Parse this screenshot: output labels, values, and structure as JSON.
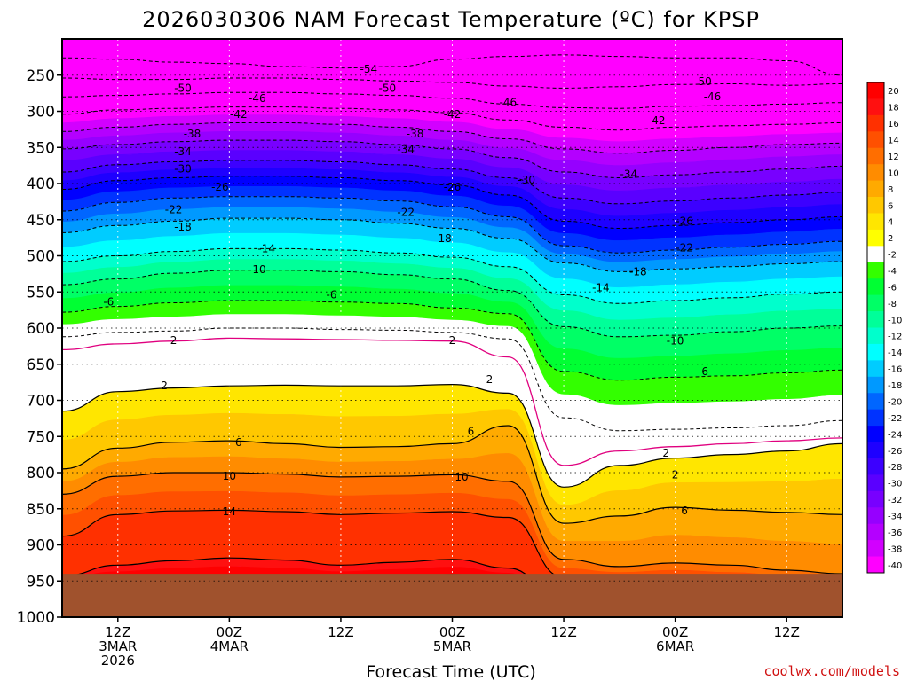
{
  "chart_data": {
    "type": "heatmap",
    "title": "2026030306 NAM Forecast Temperature (ºC) for KPSP",
    "xlabel": "Forecast Time (UTC)",
    "ylabel": "",
    "y_axis": {
      "type": "pressure",
      "unit": "hPa",
      "inverted": true,
      "range": [
        1000,
        200
      ],
      "ticks": [
        250,
        300,
        350,
        400,
        450,
        500,
        550,
        600,
        650,
        700,
        750,
        800,
        850,
        900,
        950,
        1000
      ]
    },
    "x_axis": {
      "range_hours": [
        0,
        84
      ],
      "tick_hours": [
        6,
        18,
        30,
        42,
        54,
        66,
        78
      ],
      "tick_labels": [
        {
          "hour": 6,
          "lines": [
            "12Z",
            "3MAR",
            "2026"
          ]
        },
        {
          "hour": 18,
          "lines": [
            "00Z",
            "4MAR"
          ]
        },
        {
          "hour": 30,
          "lines": [
            "12Z"
          ]
        },
        {
          "hour": 42,
          "lines": [
            "00Z",
            "5MAR"
          ]
        },
        {
          "hour": 54,
          "lines": [
            "12Z"
          ]
        },
        {
          "hour": 66,
          "lines": [
            "00Z",
            "6MAR"
          ]
        },
        {
          "hour": 78,
          "lines": [
            "12Z"
          ]
        }
      ]
    },
    "grid": true,
    "ground_level_hpa": 940,
    "x_hours": [
      0,
      6,
      12,
      18,
      24,
      30,
      36,
      42,
      48,
      54,
      60,
      66,
      72,
      78,
      84
    ],
    "isotherm_levels_hpa": {
      "20": [
        948,
        946,
        943,
        942,
        943,
        946,
        944,
        941,
        946,
        980,
        980,
        980,
        980,
        980,
        980
      ],
      "16": [
        943,
        928,
        922,
        918,
        921,
        928,
        924,
        920,
        932,
        980,
        980,
        980,
        980,
        980,
        980
      ],
      "14": [
        888,
        858,
        853,
        852,
        854,
        858,
        856,
        854,
        862,
        945,
        946,
        945,
        948,
        950,
        952
      ],
      "10": [
        830,
        805,
        800,
        800,
        802,
        806,
        805,
        803,
        812,
        920,
        930,
        925,
        928,
        935,
        940
      ],
      "6": [
        795,
        766,
        758,
        756,
        760,
        765,
        764,
        760,
        735,
        870,
        860,
        848,
        852,
        855,
        858
      ],
      "2": [
        715,
        688,
        683,
        680,
        679,
        680,
        680,
        678,
        690,
        820,
        790,
        780,
        775,
        770,
        760
      ],
      "0": [
        630,
        622,
        618,
        614,
        615,
        616,
        617,
        618,
        640,
        790,
        770,
        764,
        760,
        756,
        752
      ],
      "-2": [
        612,
        606,
        604,
        600,
        600,
        602,
        603,
        606,
        615,
        724,
        742,
        740,
        738,
        735,
        728
      ],
      "-6": [
        578,
        570,
        565,
        562,
        562,
        564,
        566,
        572,
        580,
        660,
        672,
        668,
        666,
        662,
        658
      ],
      "-10": [
        540,
        532,
        524,
        520,
        520,
        522,
        526,
        532,
        548,
        598,
        612,
        610,
        605,
        600,
        597
      ],
      "-14": [
        508,
        500,
        494,
        490,
        490,
        492,
        496,
        502,
        515,
        554,
        566,
        562,
        558,
        553,
        550
      ],
      "-18": [
        468,
        458,
        452,
        448,
        448,
        450,
        455,
        462,
        476,
        510,
        522,
        518,
        515,
        511,
        508
      ],
      "-22": [
        438,
        426,
        420,
        418,
        418,
        420,
        424,
        432,
        446,
        486,
        496,
        492,
        488,
        484,
        480
      ],
      "-26": [
        408,
        396,
        392,
        390,
        390,
        392,
        396,
        402,
        416,
        452,
        462,
        458,
        454,
        450,
        446
      ],
      "-30": [
        384,
        374,
        370,
        368,
        368,
        370,
        374,
        380,
        392,
        420,
        428,
        424,
        420,
        416,
        412
      ],
      "-34": [
        352,
        346,
        342,
        340,
        340,
        342,
        346,
        352,
        364,
        384,
        392,
        388,
        384,
        380,
        376
      ],
      "-38": [
        328,
        322,
        318,
        316,
        316,
        318,
        322,
        328,
        338,
        352,
        358,
        354,
        350,
        346,
        344
      ],
      "-42": [
        304,
        298,
        296,
        294,
        294,
        296,
        298,
        302,
        312,
        322,
        326,
        322,
        320,
        318,
        316
      ],
      "-46": [
        280,
        278,
        276,
        274,
        274,
        276,
        278,
        282,
        290,
        295,
        296,
        293,
        292,
        290,
        288
      ],
      "-50": [
        254,
        256,
        256,
        254,
        254,
        256,
        258,
        260,
        265,
        268,
        266,
        263,
        262,
        264,
        262
      ],
      "-54": [
        226,
        228,
        232,
        234,
        238,
        240,
        238,
        228,
        224,
        222,
        224,
        226,
        226,
        230,
        250
      ]
    },
    "solid_isotherms": [
      20,
      16,
      14,
      10,
      6,
      2
    ],
    "zero_isotherm": 0,
    "dashed_isotherms": [
      -2,
      -6,
      -10,
      -14,
      -18,
      -22,
      -26,
      -30,
      -34,
      -38,
      -42,
      -46,
      -50,
      -54
    ],
    "contour_labels": [
      {
        "text": "-54",
        "hour": 33,
        "hpa": 242
      },
      {
        "text": "-50",
        "hour": 13,
        "hpa": 268
      },
      {
        "text": "-50",
        "hour": 35,
        "hpa": 268
      },
      {
        "text": "-50",
        "hour": 69,
        "hpa": 259
      },
      {
        "text": "-46",
        "hour": 21,
        "hpa": 282
      },
      {
        "text": "-46",
        "hour": 48,
        "hpa": 288
      },
      {
        "text": "-46",
        "hour": 70,
        "hpa": 280
      },
      {
        "text": "-42",
        "hour": 19,
        "hpa": 304
      },
      {
        "text": "-42",
        "hour": 42,
        "hpa": 304
      },
      {
        "text": "-42",
        "hour": 64,
        "hpa": 313
      },
      {
        "text": "-38",
        "hour": 14,
        "hpa": 331
      },
      {
        "text": "-38",
        "hour": 38,
        "hpa": 331
      },
      {
        "text": "-34",
        "hour": 13,
        "hpa": 356
      },
      {
        "text": "-34",
        "hour": 37,
        "hpa": 353
      },
      {
        "text": "-34",
        "hour": 61,
        "hpa": 387
      },
      {
        "text": "-30",
        "hour": 13,
        "hpa": 380
      },
      {
        "text": "-30",
        "hour": 50,
        "hpa": 395
      },
      {
        "text": "-26",
        "hour": 17,
        "hpa": 405
      },
      {
        "text": "-26",
        "hour": 42,
        "hpa": 405
      },
      {
        "text": "-26",
        "hour": 67,
        "hpa": 452
      },
      {
        "text": "-22",
        "hour": 12,
        "hpa": 436
      },
      {
        "text": "-22",
        "hour": 37,
        "hpa": 440
      },
      {
        "text": "-22",
        "hour": 67,
        "hpa": 489
      },
      {
        "text": "-18",
        "hour": 13,
        "hpa": 460
      },
      {
        "text": "-18",
        "hour": 41,
        "hpa": 476
      },
      {
        "text": "-18",
        "hour": 62,
        "hpa": 522
      },
      {
        "text": "-14",
        "hour": 22,
        "hpa": 490
      },
      {
        "text": "-14",
        "hour": 58,
        "hpa": 544
      },
      {
        "text": "-10",
        "hour": 21,
        "hpa": 519
      },
      {
        "text": "-10",
        "hour": 66,
        "hpa": 618
      },
      {
        "text": "-6",
        "hour": 5,
        "hpa": 564
      },
      {
        "text": "-6",
        "hour": 29,
        "hpa": 554
      },
      {
        "text": "-6",
        "hour": 69,
        "hpa": 660
      },
      {
        "text": "2",
        "hour": 12,
        "hpa": 617
      },
      {
        "text": "2",
        "hour": 42,
        "hpa": 617
      },
      {
        "text": "2",
        "hour": 11,
        "hpa": 680
      },
      {
        "text": "2",
        "hour": 46,
        "hpa": 671
      },
      {
        "text": "2",
        "hour": 65,
        "hpa": 773
      },
      {
        "text": "2",
        "hour": 66,
        "hpa": 803
      },
      {
        "text": "6",
        "hour": 19,
        "hpa": 758
      },
      {
        "text": "6",
        "hour": 44,
        "hpa": 743
      },
      {
        "text": "6",
        "hour": 67,
        "hpa": 853
      },
      {
        "text": "10",
        "hour": 18,
        "hpa": 805
      },
      {
        "text": "10",
        "hour": 43,
        "hpa": 806
      },
      {
        "text": "14",
        "hour": 18,
        "hpa": 854
      }
    ],
    "colorbar": {
      "labels": [
        "20",
        "18",
        "16",
        "14",
        "12",
        "10",
        "8",
        "6",
        "4",
        "2",
        "-2",
        "-4",
        "-6",
        "-8",
        "-10",
        "-12",
        "-14",
        "-16",
        "-18",
        "-20",
        "-22",
        "-24",
        "-26",
        "-28",
        "-30",
        "-32",
        "-34",
        "-36",
        "-38",
        "-40"
      ],
      "colors": [
        "#ff0000",
        "#ff1010",
        "#ff3000",
        "#ff5000",
        "#ff6e00",
        "#ff8c00",
        "#ffaa00",
        "#ffc800",
        "#ffe600",
        "#ffff00",
        "#ffffff",
        "#33ff00",
        "#00ff33",
        "#00ff66",
        "#00ff99",
        "#00ffcc",
        "#00ffff",
        "#00ccff",
        "#0099ff",
        "#0066ff",
        "#0033ff",
        "#0000ff",
        "#1e00ff",
        "#3c00ff",
        "#5a00ff",
        "#7800ff",
        "#9600ff",
        "#b400ff",
        "#d200ff",
        "#ff00ff"
      ]
    },
    "colors": {
      "ground": "#a0522d",
      "zero_line": "#e0007f",
      "contour": "#000000"
    }
  },
  "credit": "coolwx.com/models"
}
